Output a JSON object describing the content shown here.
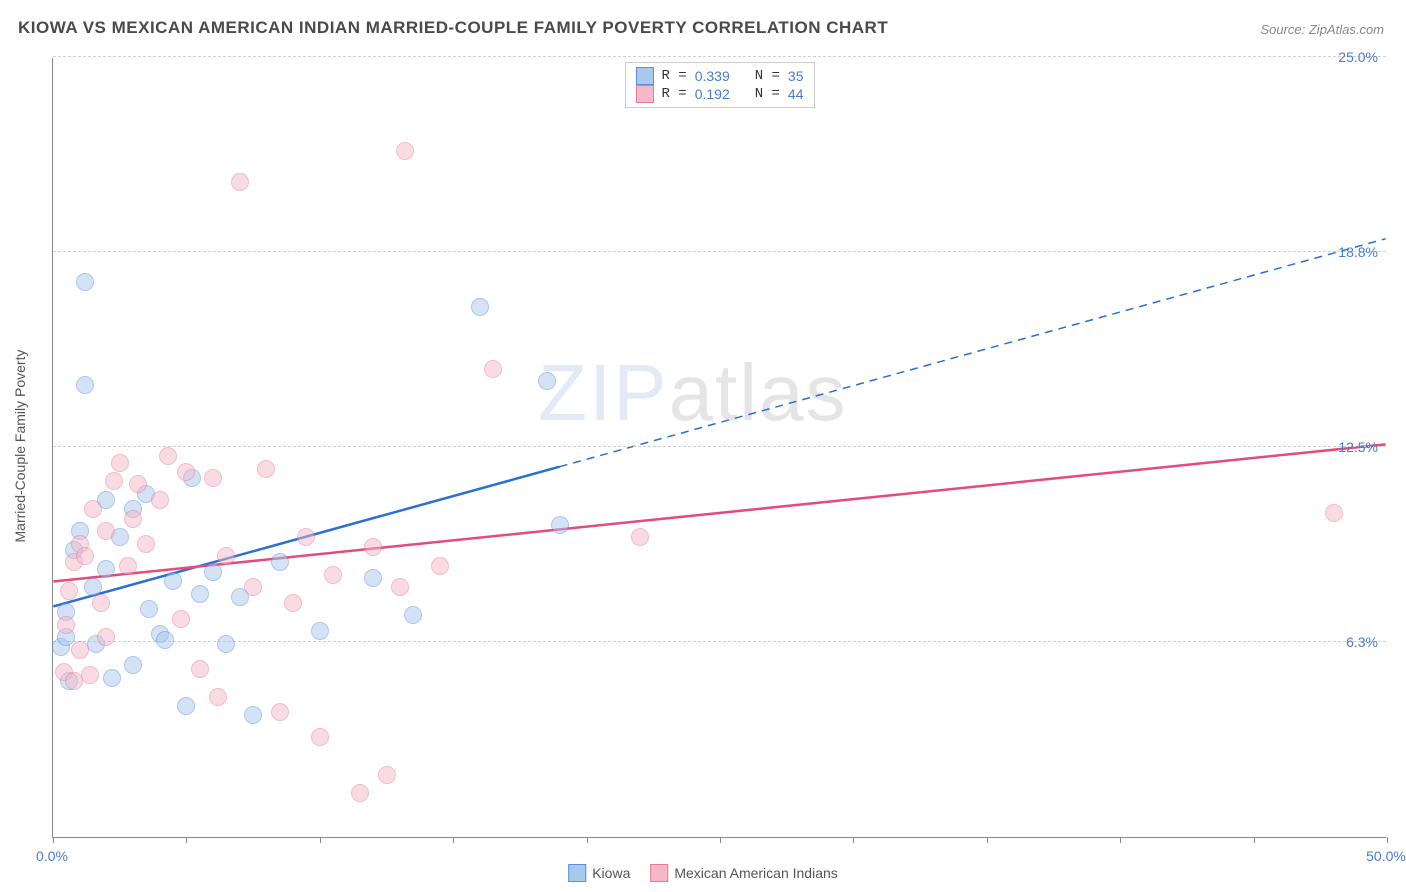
{
  "title": "KIOWA VS MEXICAN AMERICAN INDIAN MARRIED-COUPLE FAMILY POVERTY CORRELATION CHART",
  "source": "Source: ZipAtlas.com",
  "y_axis_label": "Married-Couple Family Poverty",
  "watermark_a": "ZIP",
  "watermark_b": "atlas",
  "chart": {
    "type": "scatter",
    "xlim": [
      0,
      50
    ],
    "ylim": [
      0,
      25
    ],
    "x_tick_step": 5,
    "x_labels": [
      {
        "x": 0,
        "text": "0.0%"
      },
      {
        "x": 50,
        "text": "50.0%"
      }
    ],
    "y_gridlines": [
      6.25,
      12.5,
      18.75,
      25.0
    ],
    "y_labels": [
      {
        "y": 6.25,
        "text": "6.3%"
      },
      {
        "y": 12.5,
        "text": "12.5%"
      },
      {
        "y": 18.75,
        "text": "18.8%"
      },
      {
        "y": 25.0,
        "text": "25.0%"
      }
    ],
    "background_color": "#ffffff",
    "grid_color": "#d0d0d0",
    "axis_color": "#888888",
    "tick_label_color": "#4a7bd0",
    "point_radius": 9,
    "point_opacity": 0.5,
    "series": [
      {
        "id": "kiowa",
        "label": "Kiowa",
        "fill": "#a8c8ec",
        "stroke": "#5b8fd6",
        "trend_color": "#2a6fd6",
        "trend_width": 2.5,
        "R": "0.339",
        "N": "35",
        "trend": {
          "x1": 0,
          "y1": 7.4,
          "x2": 50,
          "y2": 19.2,
          "solid_until_x": 19
        },
        "points": [
          [
            0.3,
            6.1
          ],
          [
            0.5,
            6.4
          ],
          [
            0.5,
            7.2
          ],
          [
            0.6,
            5.0
          ],
          [
            0.8,
            9.2
          ],
          [
            1.0,
            9.8
          ],
          [
            1.2,
            17.8
          ],
          [
            1.2,
            14.5
          ],
          [
            1.5,
            8.0
          ],
          [
            1.6,
            6.2
          ],
          [
            2.0,
            10.8
          ],
          [
            2.0,
            8.6
          ],
          [
            2.2,
            5.1
          ],
          [
            2.5,
            9.6
          ],
          [
            3.0,
            5.5
          ],
          [
            3.0,
            10.5
          ],
          [
            3.5,
            11.0
          ],
          [
            3.6,
            7.3
          ],
          [
            4.0,
            6.5
          ],
          [
            4.2,
            6.3
          ],
          [
            4.5,
            8.2
          ],
          [
            5.0,
            4.2
          ],
          [
            5.2,
            11.5
          ],
          [
            5.5,
            7.8
          ],
          [
            6.0,
            8.5
          ],
          [
            6.5,
            6.2
          ],
          [
            7.0,
            7.7
          ],
          [
            7.5,
            3.9
          ],
          [
            8.5,
            8.8
          ],
          [
            10.0,
            6.6
          ],
          [
            12.0,
            8.3
          ],
          [
            13.5,
            7.1
          ],
          [
            16.0,
            17.0
          ],
          [
            18.5,
            14.6
          ],
          [
            19.0,
            10.0
          ]
        ]
      },
      {
        "id": "mexican",
        "label": "Mexican American Indians",
        "fill": "#f5b8c8",
        "stroke": "#e87a9a",
        "trend_color": "#e64a7a",
        "trend_width": 2.5,
        "R": "0.192",
        "N": "44",
        "trend": {
          "x1": 0,
          "y1": 8.2,
          "x2": 50,
          "y2": 12.6,
          "solid_until_x": 50
        },
        "points": [
          [
            0.4,
            5.3
          ],
          [
            0.5,
            6.8
          ],
          [
            0.6,
            7.9
          ],
          [
            0.8,
            5.0
          ],
          [
            0.8,
            8.8
          ],
          [
            1.0,
            9.4
          ],
          [
            1.0,
            6.0
          ],
          [
            1.2,
            9.0
          ],
          [
            1.4,
            5.2
          ],
          [
            1.5,
            10.5
          ],
          [
            1.8,
            7.5
          ],
          [
            2.0,
            9.8
          ],
          [
            2.0,
            6.4
          ],
          [
            2.3,
            11.4
          ],
          [
            2.5,
            12.0
          ],
          [
            2.8,
            8.7
          ],
          [
            3.0,
            10.2
          ],
          [
            3.2,
            11.3
          ],
          [
            3.5,
            9.4
          ],
          [
            4.0,
            10.8
          ],
          [
            4.3,
            12.2
          ],
          [
            4.8,
            7.0
          ],
          [
            5.0,
            11.7
          ],
          [
            5.5,
            5.4
          ],
          [
            6.0,
            11.5
          ],
          [
            6.2,
            4.5
          ],
          [
            6.5,
            9.0
          ],
          [
            7.0,
            21.0
          ],
          [
            7.5,
            8.0
          ],
          [
            8.0,
            11.8
          ],
          [
            8.5,
            4.0
          ],
          [
            9.0,
            7.5
          ],
          [
            9.5,
            9.6
          ],
          [
            10.0,
            3.2
          ],
          [
            10.5,
            8.4
          ],
          [
            11.5,
            1.4
          ],
          [
            12.0,
            9.3
          ],
          [
            12.5,
            2.0
          ],
          [
            13.0,
            8.0
          ],
          [
            13.2,
            22.0
          ],
          [
            14.5,
            8.7
          ],
          [
            16.5,
            15.0
          ],
          [
            22.0,
            9.6
          ],
          [
            48.0,
            10.4
          ]
        ]
      }
    ]
  },
  "legend_top": {
    "rows": [
      {
        "swatch_series": "kiowa",
        "r_label": "R =",
        "n_label": "N ="
      },
      {
        "swatch_series": "mexican",
        "r_label": "R =",
        "n_label": "N ="
      }
    ]
  }
}
